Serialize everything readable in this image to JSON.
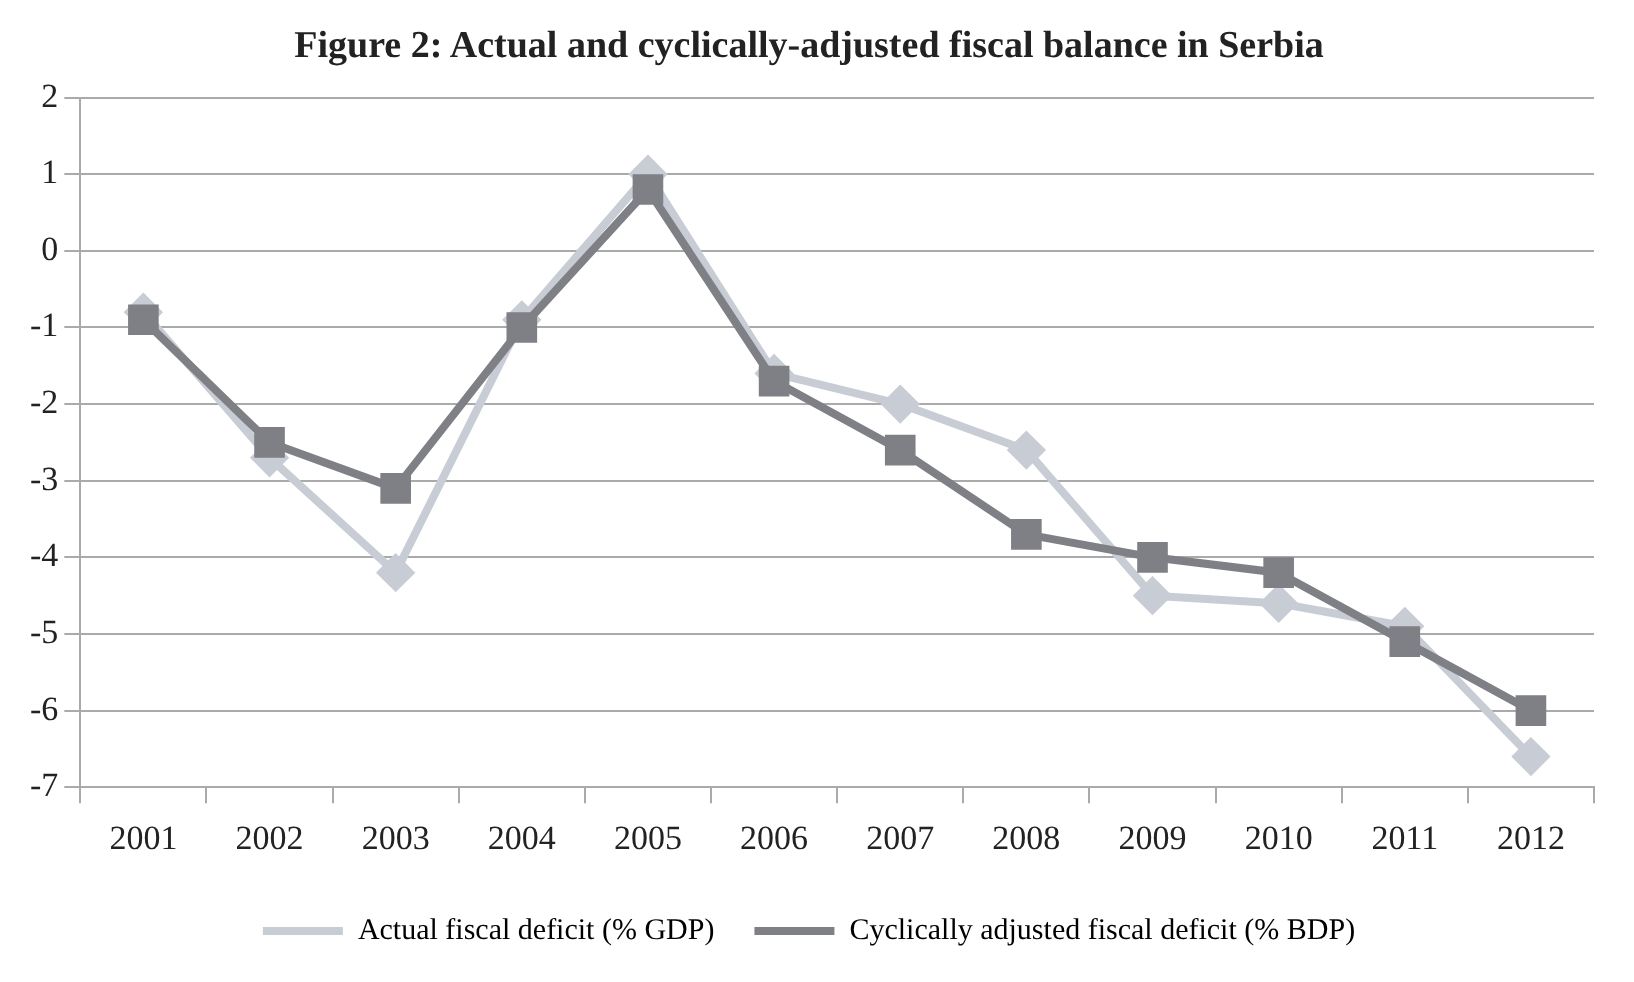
{
  "chart_data": {
    "type": "line",
    "title": "Figure 2: Actual and cyclically-adjusted fiscal balance in Serbia",
    "categories": [
      "2001",
      "2002",
      "2003",
      "2004",
      "2005",
      "2006",
      "2007",
      "2008",
      "2009",
      "2010",
      "2011",
      "2012"
    ],
    "series": [
      {
        "name": "Actual fiscal deficit (% GDP)",
        "color": "#c8ccd4",
        "marker": "diamond",
        "values": [
          -0.8,
          -2.7,
          -4.2,
          -0.9,
          1.0,
          -1.6,
          -2.0,
          -2.6,
          -4.5,
          -4.6,
          -4.9,
          -6.6
        ]
      },
      {
        "name": "Cyclically adjusted fiscal deficit (% BDP)",
        "color": "#7f8085",
        "marker": "square",
        "values": [
          -0.9,
          -2.5,
          -3.1,
          -1.0,
          0.8,
          -1.7,
          -2.6,
          -3.7,
          -4.0,
          -4.2,
          -5.1,
          -6.0
        ]
      }
    ],
    "ylim": [
      -7,
      2
    ],
    "yticks": [
      -7,
      -6,
      -5,
      -4,
      -3,
      -2,
      -1,
      0,
      1,
      2
    ],
    "grid": "y",
    "legend": "bottom",
    "line_style": "solid"
  }
}
